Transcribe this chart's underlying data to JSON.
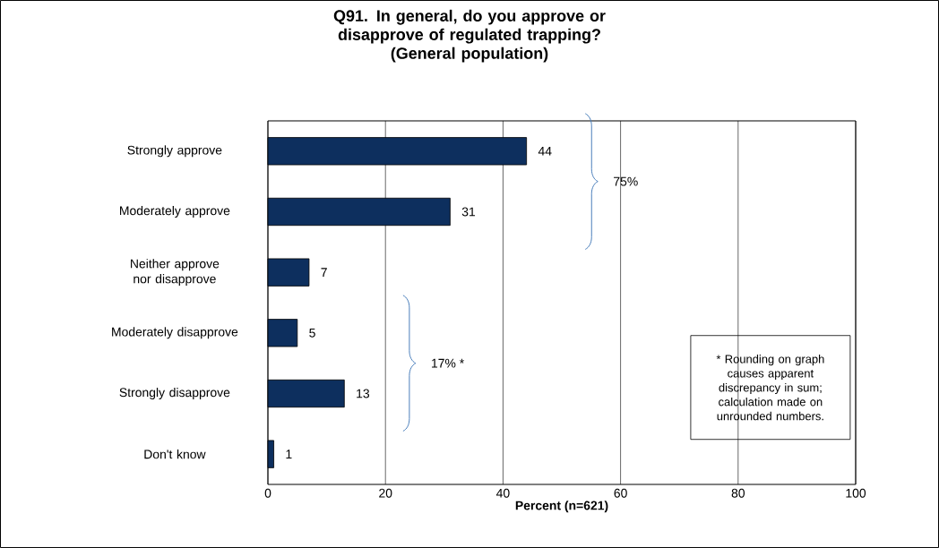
{
  "chart_data": {
    "type": "bar",
    "orientation": "horizontal",
    "title": "Q91. In general, do you approve or disapprove of regulated trapping?",
    "subtitle": "(General population)",
    "xlabel": "Percent (n=621)",
    "categories": [
      "Strongly approve",
      "Moderately approve",
      "Neither approve nor disapprove",
      "Moderately disapprove",
      "Strongly disapprove",
      "Don't know"
    ],
    "values": [
      44,
      31,
      7,
      5,
      13,
      1
    ],
    "color": "#0d2f5e",
    "xlim": [
      0,
      100
    ],
    "xticks": [
      0,
      20,
      40,
      60,
      80,
      100
    ],
    "grid": "x",
    "data_labels": true,
    "annotations": [
      "75%",
      "17% *",
      "* Rounding on graph causes apparent discrepancy in sum; calculation made on unrounded numbers."
    ]
  }
}
